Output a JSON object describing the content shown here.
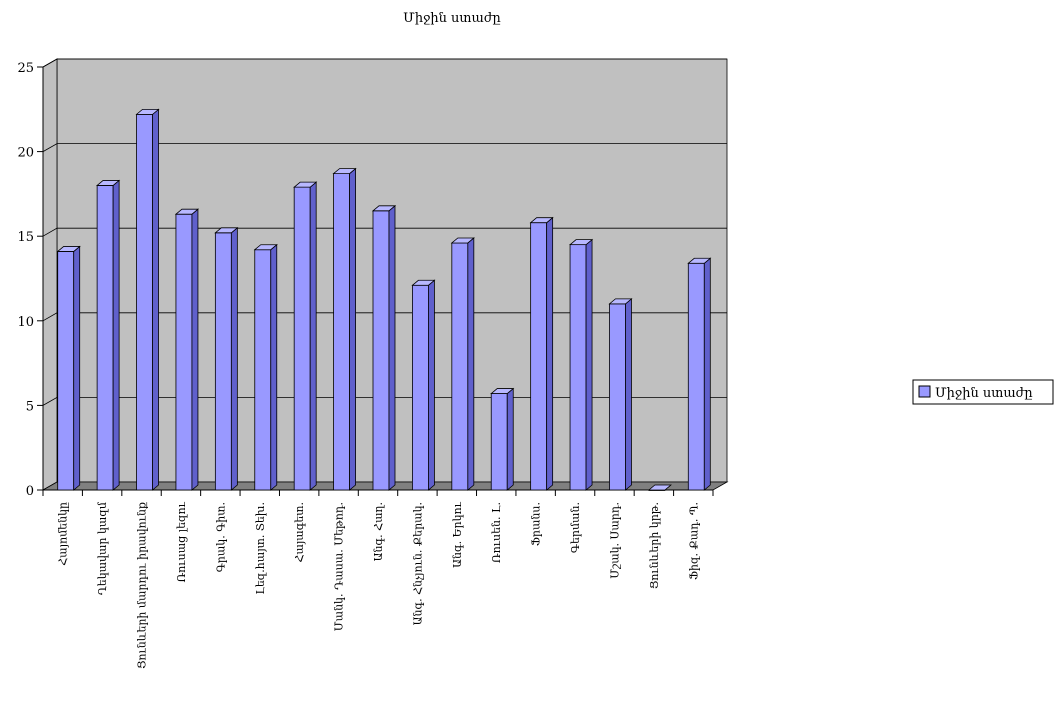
{
  "chart_data": {
    "type": "bar",
    "title": "Միջին ստաժը",
    "categories": [
      "Հայոմենկը",
      "Ղեկավար կազմ",
      "Ցունևերի մարդու իրավունք",
      "Ռուսաց լեզու",
      "Գրակ. Գիտ.",
      "Լեզ.հայտ. Տեխ.",
      "Հայագետ.",
      "Մանկ. Դասա. Մեթոդ.",
      "Անգ. Հաղ.",
      "Անգ. Հնչյուն. Քերակ.",
      "Անգ. Երկու",
      "Ռուսեն. Լ.",
      "Ֆրանս.",
      "Գերման.",
      "Մշակ. Սարդ.",
      "Ցունևերի կրթ.",
      "Ֆիզ. Քադ. Պ."
    ],
    "series": [
      {
        "name": "Միջին ստաժը",
        "values": [
          14.1,
          18.0,
          22.2,
          16.3,
          15.2,
          14.2,
          17.9,
          18.7,
          16.5,
          12.1,
          14.6,
          5.7,
          15.8,
          14.5,
          11.0,
          0.0,
          13.4
        ]
      }
    ],
    "ylim": [
      0,
      25
    ],
    "yticks": [
      0,
      5,
      10,
      15,
      20,
      25
    ],
    "grid": true,
    "legend": "right",
    "colors": {
      "bar_front": "#9999ff",
      "bar_side": "#6060cc",
      "bar_top": "#b8b8ff",
      "bar_stroke": "#000000",
      "wall": "#c0c0c0",
      "floor": "#808080",
      "gridline": "#000000"
    }
  }
}
